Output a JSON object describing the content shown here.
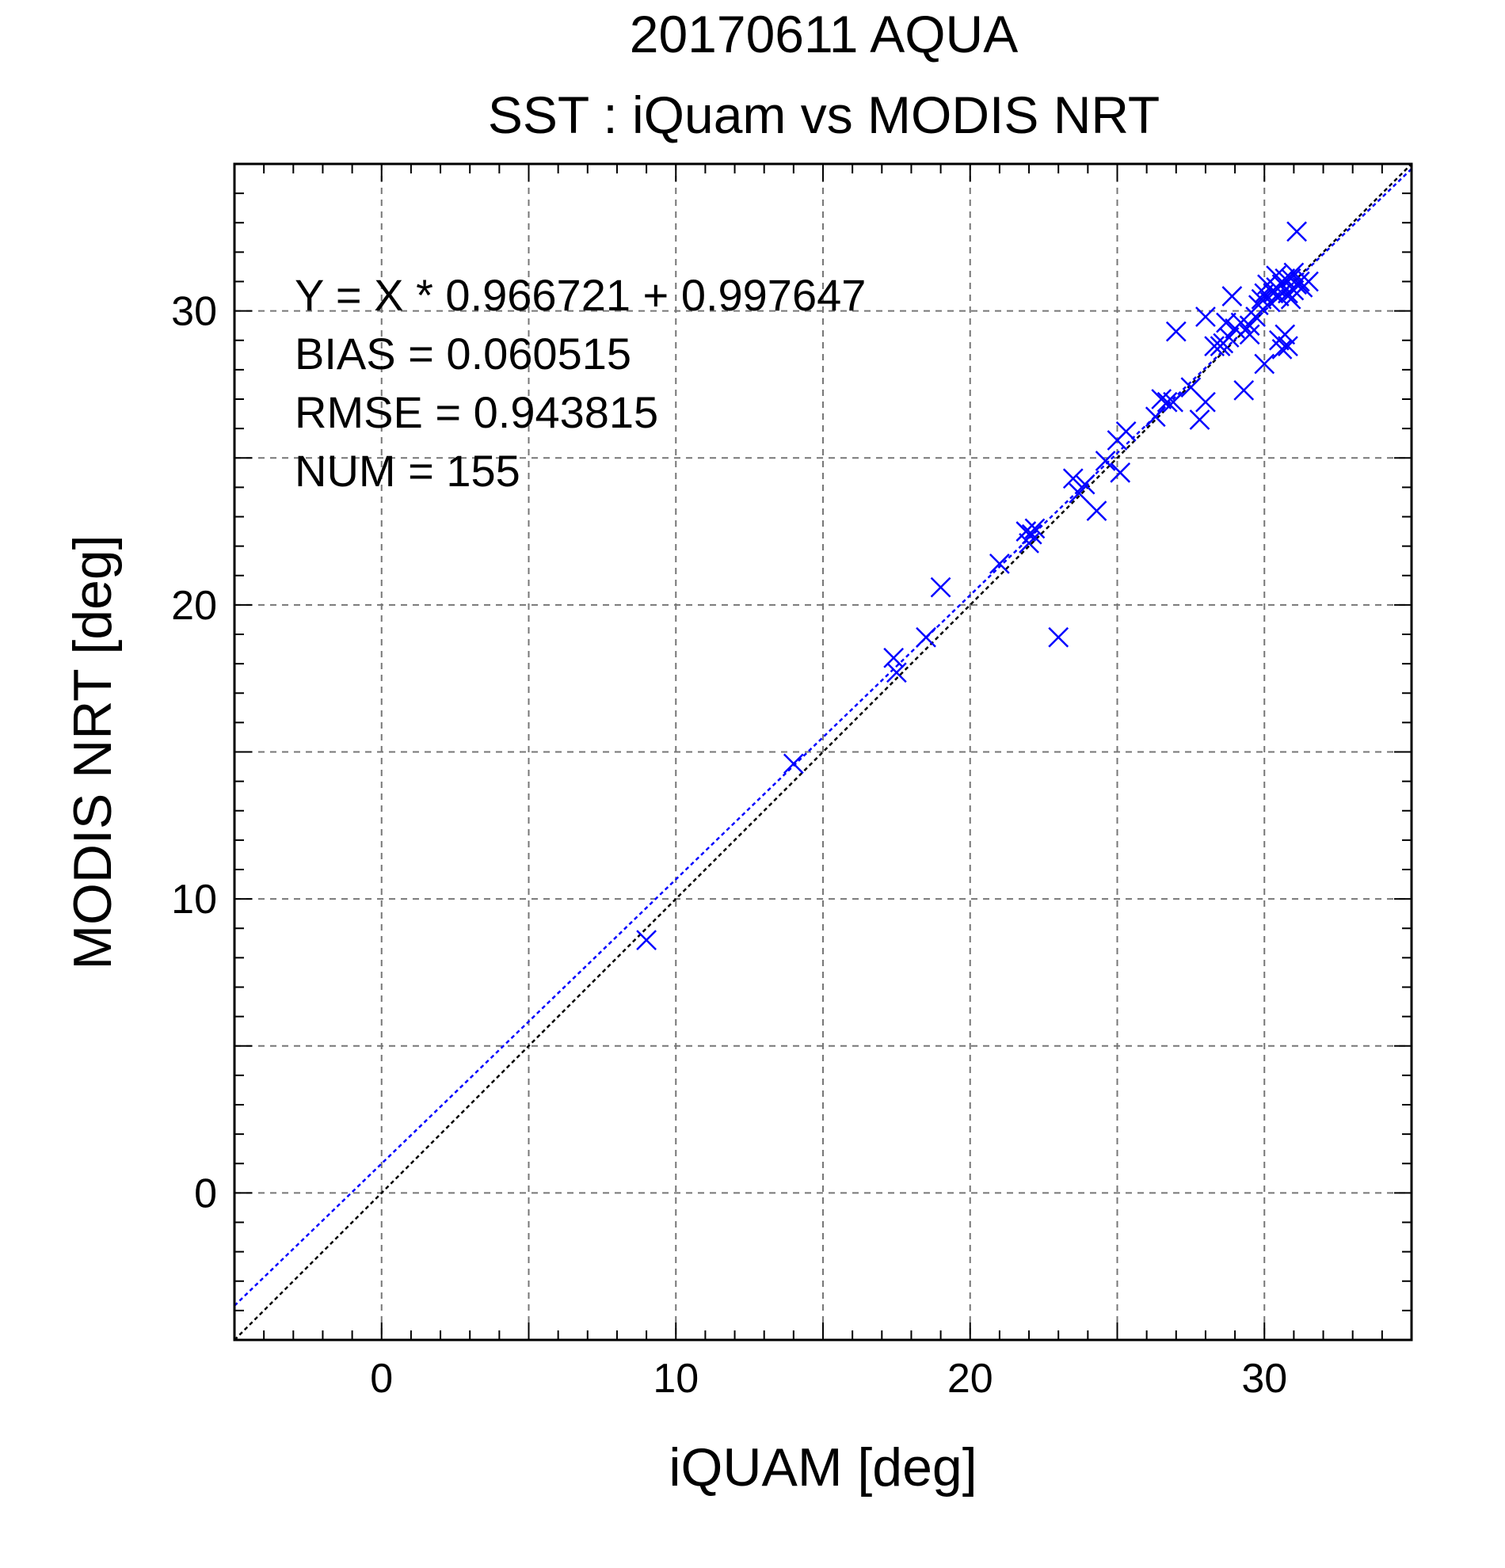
{
  "chart_data": {
    "type": "scatter",
    "title": "20170611 AQUA",
    "subtitle": "SST : iQuam vs MODIS NRT",
    "xlabel": "iQUAM [deg]",
    "ylabel": "MODIS NRT [deg]",
    "xlim": [
      -5,
      35
    ],
    "ylim": [
      -5,
      35
    ],
    "xticks": [
      0,
      10,
      20,
      30
    ],
    "yticks": [
      0,
      10,
      20,
      30
    ],
    "grid": true,
    "annotations": [
      "Y = X * 0.966721 + 0.997647",
      "BIAS = 0.060515",
      "RMSE = 0.943815",
      "NUM = 155"
    ],
    "fit_line": {
      "slope": 0.966721,
      "intercept": 0.997647,
      "color": "#0000ff"
    },
    "identity_line": {
      "slope": 1,
      "intercept": 0,
      "color": "#000000"
    },
    "marker_color": "#0000ff",
    "series": [
      {
        "points": [
          [
            9.0,
            8.6
          ],
          [
            14.0,
            14.6
          ],
          [
            17.4,
            18.2
          ],
          [
            17.5,
            17.7
          ],
          [
            18.5,
            18.9
          ],
          [
            19.0,
            20.6
          ],
          [
            21.0,
            21.4
          ],
          [
            21.9,
            22.5
          ],
          [
            22.0,
            22.1
          ],
          [
            22.1,
            22.4
          ],
          [
            22.2,
            22.6
          ],
          [
            23.0,
            18.9
          ],
          [
            23.5,
            24.3
          ],
          [
            23.7,
            23.8
          ],
          [
            23.9,
            24.1
          ],
          [
            24.3,
            23.2
          ],
          [
            24.6,
            24.9
          ],
          [
            25.0,
            25.6
          ],
          [
            25.1,
            24.5
          ],
          [
            25.3,
            25.9
          ],
          [
            26.3,
            26.4
          ],
          [
            26.5,
            27.0
          ],
          [
            26.7,
            26.9
          ],
          [
            26.9,
            26.9
          ],
          [
            27.0,
            29.3
          ],
          [
            27.5,
            27.4
          ],
          [
            27.8,
            26.3
          ],
          [
            28.0,
            26.9
          ],
          [
            28.0,
            29.8
          ],
          [
            28.3,
            28.8
          ],
          [
            28.5,
            28.8
          ],
          [
            28.6,
            28.9
          ],
          [
            28.7,
            29.6
          ],
          [
            28.8,
            29.1
          ],
          [
            28.9,
            30.5
          ],
          [
            29.0,
            29.4
          ],
          [
            29.2,
            29.6
          ],
          [
            29.3,
            27.3
          ],
          [
            29.5,
            29.5
          ],
          [
            29.5,
            29.2
          ],
          [
            29.7,
            29.8
          ],
          [
            29.8,
            30.2
          ],
          [
            29.9,
            30.4
          ],
          [
            30.0,
            28.2
          ],
          [
            30.0,
            30.6
          ],
          [
            30.1,
            30.9
          ],
          [
            30.2,
            30.3
          ],
          [
            30.3,
            30.6
          ],
          [
            30.4,
            30.8
          ],
          [
            30.4,
            31.2
          ],
          [
            30.5,
            30.5
          ],
          [
            30.5,
            29.0
          ],
          [
            30.6,
            30.9
          ],
          [
            30.6,
            28.7
          ],
          [
            30.7,
            31.1
          ],
          [
            30.7,
            29.2
          ],
          [
            30.8,
            30.6
          ],
          [
            30.8,
            28.8
          ],
          [
            30.9,
            30.4
          ],
          [
            30.9,
            31.1
          ],
          [
            31.0,
            30.7
          ],
          [
            31.0,
            31.3
          ],
          [
            31.1,
            30.9
          ],
          [
            31.1,
            32.7
          ],
          [
            31.2,
            31.0
          ],
          [
            31.3,
            30.8
          ],
          [
            31.5,
            31.0
          ]
        ]
      }
    ]
  }
}
